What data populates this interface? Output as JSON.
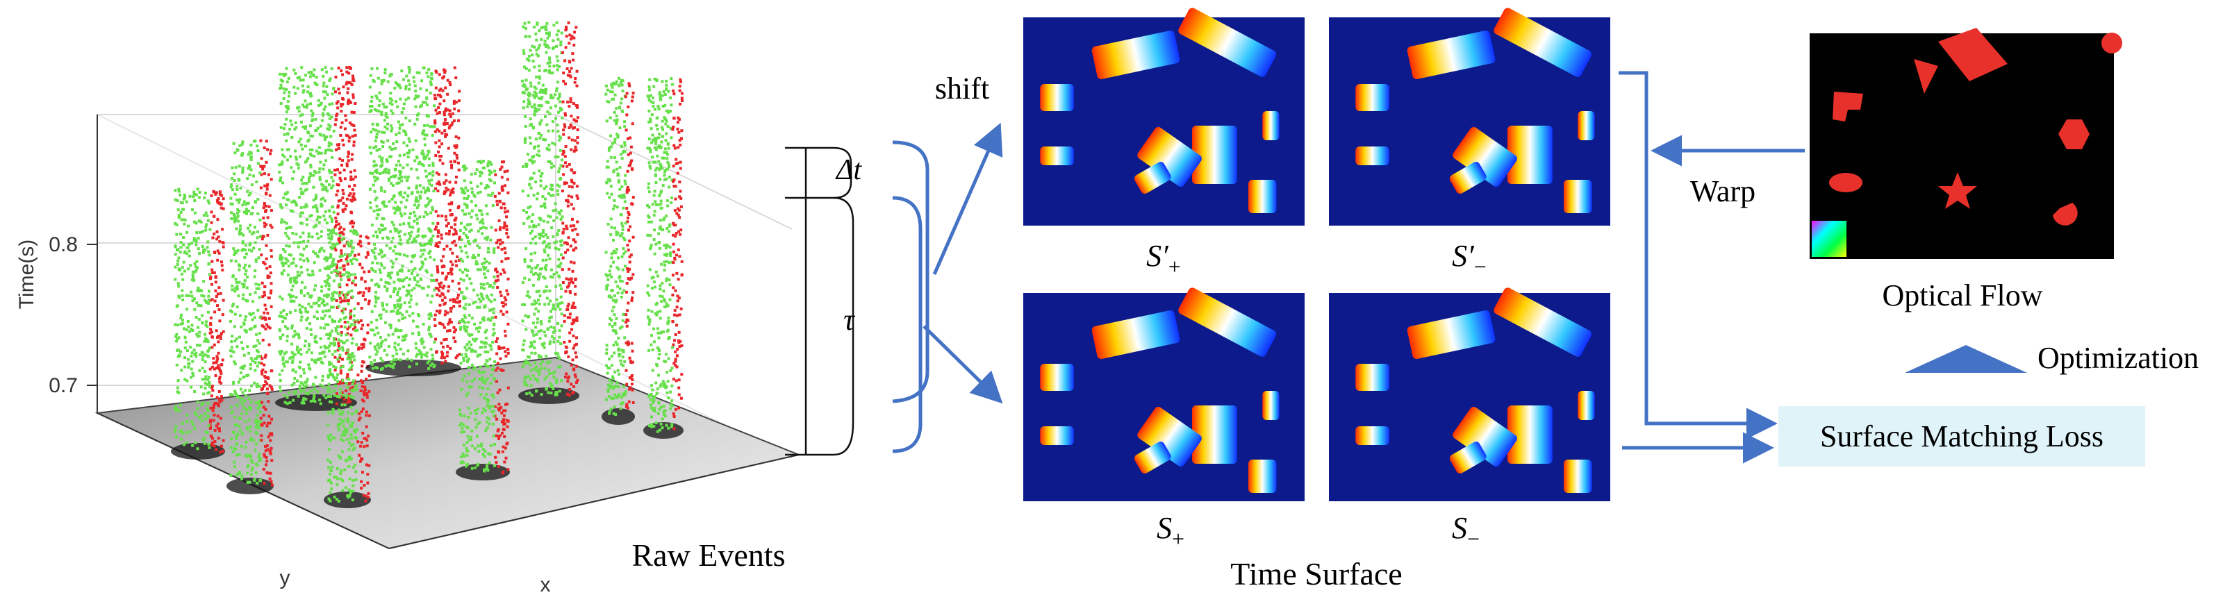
{
  "plot3d": {
    "ylabel": "Time(s)",
    "ticks": [
      "0.8",
      "0.7"
    ],
    "x_axis": "x",
    "y_axis": "y"
  },
  "labels": {
    "raw_events": "Raw Events",
    "shift": "shift",
    "delta_t": "Δt",
    "tau": "τ",
    "warp": "Warp",
    "optical_flow": "Optical Flow",
    "optimization": "Optimization",
    "surface_matching_loss": "Surface Matching Loss",
    "time_surface": "Time Surface"
  },
  "surfaces": [
    {
      "id": "s-prime-plus",
      "base": "S",
      "prime": "′",
      "sub": "+"
    },
    {
      "id": "s-prime-minus",
      "base": "S",
      "prime": "′",
      "sub": "−"
    },
    {
      "id": "s-plus",
      "base": "S",
      "prime": "",
      "sub": "+"
    },
    {
      "id": "s-minus",
      "base": "S",
      "prime": "",
      "sub": "−"
    }
  ],
  "colors": {
    "arrow": "#4472c4",
    "loss_box": "#dff3f9",
    "surface_bg": "#0c1a8c",
    "flow_bg": "#000000",
    "flow_shape": "#e8312a",
    "event_green": "#66e04a",
    "event_red": "#e8262a"
  }
}
